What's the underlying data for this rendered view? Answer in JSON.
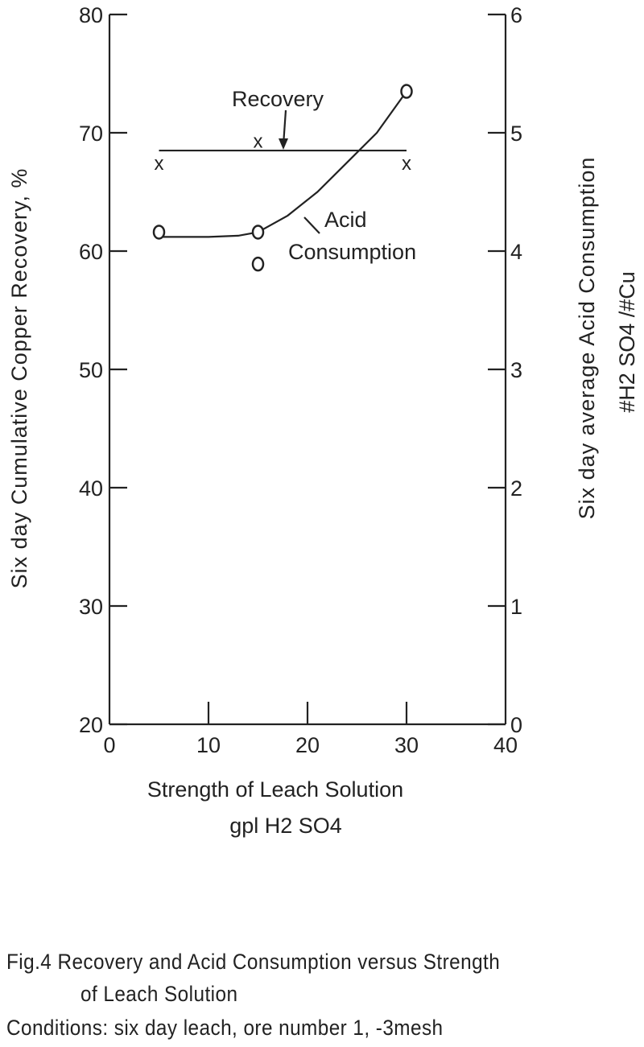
{
  "chart_data": {
    "type": "line",
    "xlabel": "Strength of Leach Solution",
    "xlabel_line2": "gpl H2 SO4",
    "ylabel": "Six day Cumulative Copper Recovery, %",
    "y2label": "Six day average Acid Consumption",
    "y2label_line2": "#H2 SO4 /#Cu",
    "xlim": [
      0,
      40
    ],
    "ylim": [
      20,
      80
    ],
    "y2lim": [
      0,
      6
    ],
    "x_ticks": [
      0,
      10,
      20,
      30,
      40
    ],
    "y_ticks": [
      20,
      30,
      40,
      50,
      60,
      70,
      80
    ],
    "y2_ticks": [
      0,
      1,
      2,
      3,
      4,
      5,
      6
    ],
    "grid": false,
    "series": [
      {
        "name": "Recovery",
        "axis": "left",
        "marker": "x",
        "points": [
          [
            5,
            67.4
          ],
          [
            15,
            69.3
          ],
          [
            30,
            67.4
          ]
        ],
        "fit_line": [
          [
            5,
            68.5
          ],
          [
            30,
            68.5
          ]
        ]
      },
      {
        "name": "Acid Consumption",
        "axis": "right",
        "marker": "o",
        "points": [
          [
            5,
            4.16
          ],
          [
            15,
            4.16
          ],
          [
            15,
            3.89
          ],
          [
            30,
            5.35
          ]
        ],
        "fit_curve": [
          [
            5,
            4.12
          ],
          [
            10,
            4.12
          ],
          [
            13,
            4.13
          ],
          [
            15,
            4.16
          ],
          [
            18,
            4.3
          ],
          [
            21,
            4.5
          ],
          [
            24,
            4.75
          ],
          [
            27,
            5.0
          ],
          [
            30,
            5.35
          ]
        ]
      }
    ],
    "annotations": [
      "Recovery",
      "Acid",
      "Consumption"
    ]
  },
  "caption": {
    "line1": "Fig.4  Recovery and Acid  Consumption versus Strength",
    "line2": "of Leach Solution",
    "line3": "Conditions: six day leach, ore number 1, -3mesh"
  }
}
